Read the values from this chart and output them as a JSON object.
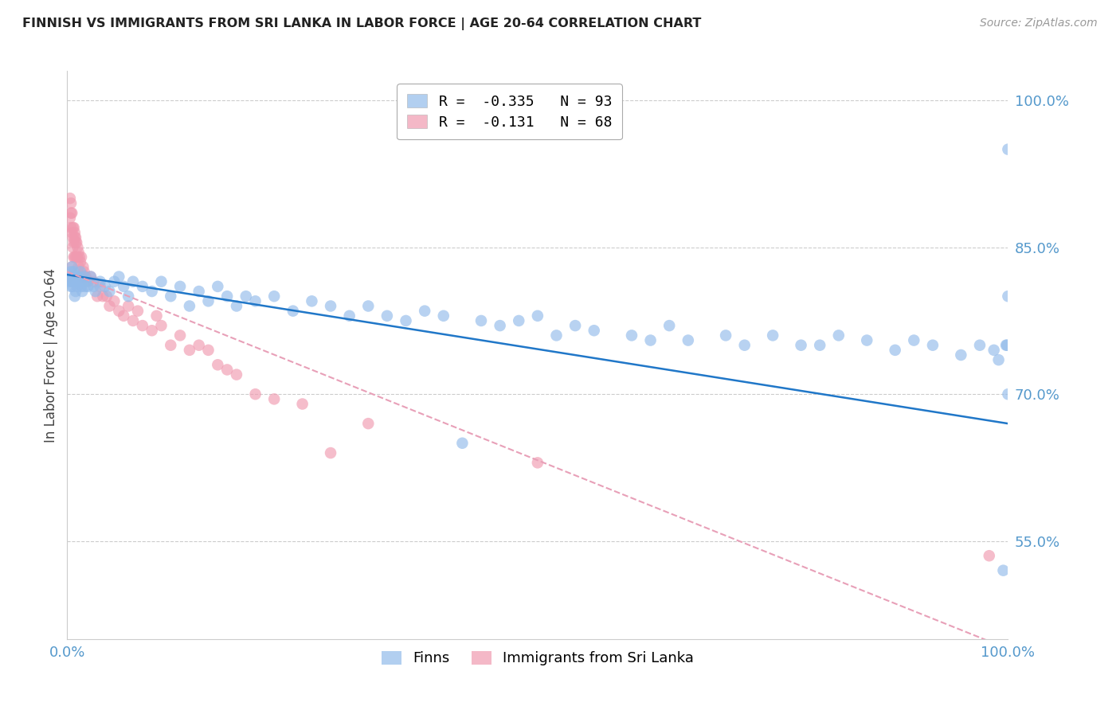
{
  "title": "FINNISH VS IMMIGRANTS FROM SRI LANKA IN LABOR FORCE | AGE 20-64 CORRELATION CHART",
  "source": "Source: ZipAtlas.com",
  "ylabel": "In Labor Force | Age 20-64",
  "xlim": [
    0.0,
    1.0
  ],
  "ylim": [
    0.45,
    1.03
  ],
  "yticks": [
    0.55,
    0.7,
    0.85,
    1.0
  ],
  "ytick_labels": [
    "55.0%",
    "70.0%",
    "85.0%",
    "100.0%"
  ],
  "xtick_vals": [
    0.0,
    0.1,
    0.2,
    0.3,
    0.4,
    0.5,
    0.6,
    0.7,
    0.8,
    0.9,
    1.0
  ],
  "xtick_labels": [
    "0.0%",
    "",
    "",
    "",
    "",
    "",
    "",
    "",
    "",
    "",
    "100.0%"
  ],
  "legend_label1": "R =  -0.335   N = 93",
  "legend_label2": "R =  -0.131   N = 68",
  "bottom_label1": "Finns",
  "bottom_label2": "Immigrants from Sri Lanka",
  "color_finns": "#92bbea",
  "color_srilanka": "#f09ab0",
  "trendline_finns_color": "#2077c8",
  "trendline_srilanka_color": "#e8a0b8",
  "background_color": "#ffffff",
  "grid_color": "#cccccc",
  "tick_label_color": "#5599cc",
  "title_color": "#222222",
  "finns_x": [
    0.002,
    0.003,
    0.004,
    0.004,
    0.005,
    0.005,
    0.006,
    0.006,
    0.007,
    0.007,
    0.008,
    0.008,
    0.009,
    0.009,
    0.01,
    0.01,
    0.011,
    0.012,
    0.013,
    0.014,
    0.015,
    0.016,
    0.017,
    0.018,
    0.019,
    0.02,
    0.022,
    0.025,
    0.028,
    0.03,
    0.035,
    0.04,
    0.045,
    0.05,
    0.055,
    0.06,
    0.065,
    0.07,
    0.08,
    0.09,
    0.1,
    0.11,
    0.12,
    0.13,
    0.14,
    0.15,
    0.16,
    0.17,
    0.18,
    0.19,
    0.2,
    0.22,
    0.24,
    0.26,
    0.28,
    0.3,
    0.32,
    0.34,
    0.36,
    0.38,
    0.4,
    0.42,
    0.44,
    0.46,
    0.48,
    0.5,
    0.52,
    0.54,
    0.56,
    0.6,
    0.62,
    0.64,
    0.66,
    0.7,
    0.72,
    0.75,
    0.78,
    0.8,
    0.82,
    0.85,
    0.88,
    0.9,
    0.92,
    0.95,
    0.97,
    0.985,
    0.99,
    0.995,
    0.998,
    0.999,
    1.0,
    1.0,
    1.0
  ],
  "finns_y": [
    0.815,
    0.82,
    0.81,
    0.825,
    0.815,
    0.83,
    0.82,
    0.81,
    0.815,
    0.825,
    0.8,
    0.82,
    0.815,
    0.805,
    0.82,
    0.815,
    0.81,
    0.82,
    0.815,
    0.825,
    0.81,
    0.805,
    0.815,
    0.82,
    0.81,
    0.815,
    0.81,
    0.82,
    0.81,
    0.805,
    0.815,
    0.81,
    0.805,
    0.815,
    0.82,
    0.81,
    0.8,
    0.815,
    0.81,
    0.805,
    0.815,
    0.8,
    0.81,
    0.79,
    0.805,
    0.795,
    0.81,
    0.8,
    0.79,
    0.8,
    0.795,
    0.8,
    0.785,
    0.795,
    0.79,
    0.78,
    0.79,
    0.78,
    0.775,
    0.785,
    0.78,
    0.65,
    0.775,
    0.77,
    0.775,
    0.78,
    0.76,
    0.77,
    0.765,
    0.76,
    0.755,
    0.77,
    0.755,
    0.76,
    0.75,
    0.76,
    0.75,
    0.75,
    0.76,
    0.755,
    0.745,
    0.755,
    0.75,
    0.74,
    0.75,
    0.745,
    0.735,
    0.52,
    0.75,
    0.75,
    0.95,
    0.8,
    0.7
  ],
  "srilanka_x": [
    0.002,
    0.003,
    0.003,
    0.004,
    0.004,
    0.004,
    0.005,
    0.005,
    0.005,
    0.006,
    0.006,
    0.006,
    0.007,
    0.007,
    0.007,
    0.008,
    0.008,
    0.008,
    0.009,
    0.009,
    0.009,
    0.01,
    0.01,
    0.011,
    0.011,
    0.012,
    0.012,
    0.013,
    0.014,
    0.015,
    0.016,
    0.017,
    0.018,
    0.019,
    0.02,
    0.022,
    0.025,
    0.028,
    0.032,
    0.035,
    0.038,
    0.042,
    0.045,
    0.05,
    0.055,
    0.06,
    0.065,
    0.07,
    0.075,
    0.08,
    0.09,
    0.095,
    0.1,
    0.11,
    0.12,
    0.13,
    0.14,
    0.15,
    0.16,
    0.17,
    0.18,
    0.2,
    0.22,
    0.25,
    0.28,
    0.32,
    0.5,
    0.98
  ],
  "srilanka_y": [
    0.82,
    0.88,
    0.9,
    0.87,
    0.885,
    0.895,
    0.83,
    0.865,
    0.885,
    0.85,
    0.87,
    0.86,
    0.855,
    0.84,
    0.87,
    0.84,
    0.86,
    0.865,
    0.84,
    0.855,
    0.86,
    0.84,
    0.855,
    0.84,
    0.85,
    0.83,
    0.845,
    0.84,
    0.835,
    0.84,
    0.82,
    0.83,
    0.825,
    0.82,
    0.82,
    0.815,
    0.82,
    0.815,
    0.8,
    0.81,
    0.8,
    0.8,
    0.79,
    0.795,
    0.785,
    0.78,
    0.79,
    0.775,
    0.785,
    0.77,
    0.765,
    0.78,
    0.77,
    0.75,
    0.76,
    0.745,
    0.75,
    0.745,
    0.73,
    0.725,
    0.72,
    0.7,
    0.695,
    0.69,
    0.64,
    0.67,
    0.63,
    0.535
  ],
  "finns_trend_x": [
    0.0,
    1.0
  ],
  "finns_trend_y": [
    0.822,
    0.67
  ],
  "srilanka_trend_x": [
    0.0,
    1.0
  ],
  "srilanka_trend_y": [
    0.825,
    0.44
  ]
}
